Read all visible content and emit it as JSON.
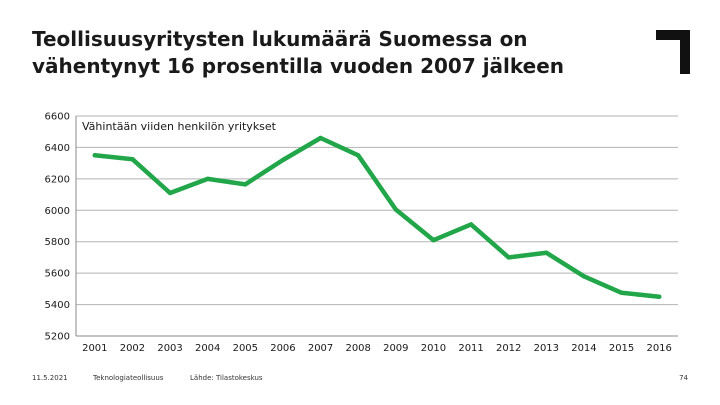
{
  "slide": {
    "title_line1": "Teollisuusyritysten lukumäärä Suomessa on",
    "title_line2": "vähentynyt 16 prosentilla vuoden 2007 jälkeen",
    "footer_date": "11.5.2021",
    "footer_org": "Teknologiateollisuus",
    "footer_source": "Lähde: Tilastokeskus",
    "page_number": "74",
    "logo_icon": "corner-bracket-logo-icon"
  },
  "colors": {
    "line": "#22a64a",
    "grid": "#b3b3b3",
    "text": "#1a1a1a"
  },
  "chart_data": {
    "type": "line",
    "title": "",
    "annotation": "Vähintään viiden henkilön yritykset",
    "xlabel": "",
    "ylabel": "",
    "ylim": [
      5200,
      6600
    ],
    "yticks": [
      5200,
      5400,
      5600,
      5800,
      6000,
      6200,
      6400,
      6600
    ],
    "grid": true,
    "categories": [
      "2001",
      "2002",
      "2003",
      "2004",
      "2005",
      "2006",
      "2007",
      "2008",
      "2009",
      "2010",
      "2011",
      "2012",
      "2013",
      "2014",
      "2015",
      "2016"
    ],
    "series": [
      {
        "name": "Vähintään viiden henkilön yritykset",
        "values": [
          6350,
          6325,
          6110,
          6200,
          6165,
          6320,
          6460,
          6350,
          6005,
          5810,
          5910,
          5700,
          5730,
          5580,
          5475,
          5450
        ]
      }
    ]
  }
}
